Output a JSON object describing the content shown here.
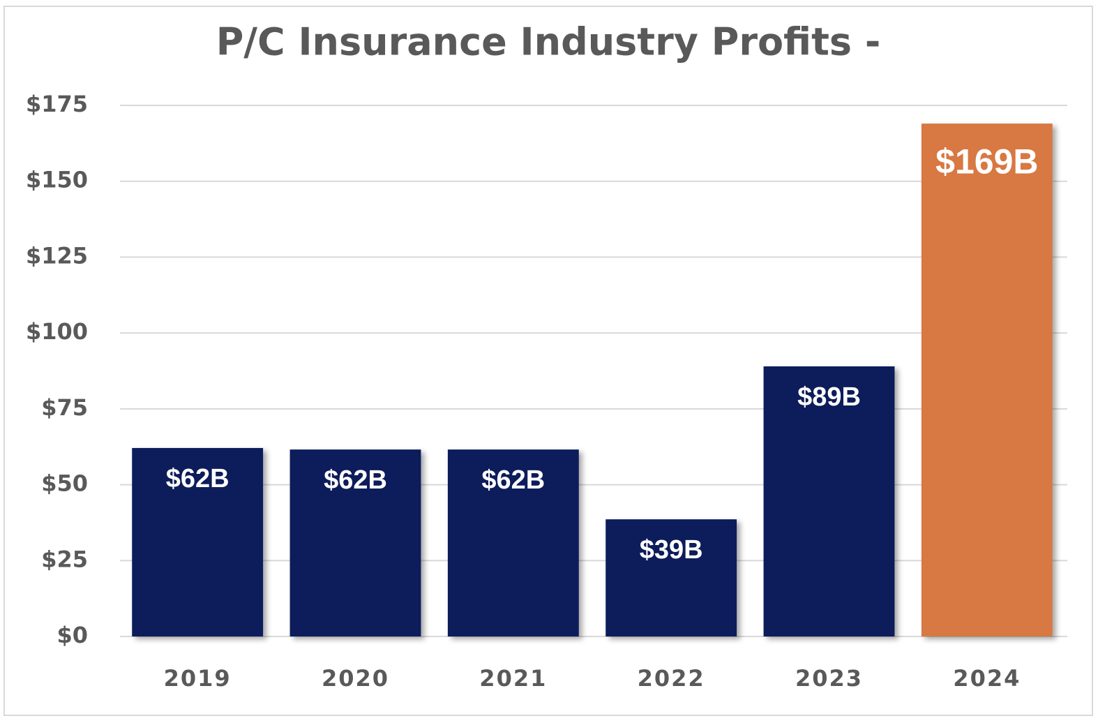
{
  "chart_data": {
    "type": "bar",
    "title": "P/C Insurance Industry Profits -",
    "categories": [
      "2019",
      "2020",
      "2021",
      "2022",
      "2023",
      "2024"
    ],
    "values": [
      62.1,
      61.6,
      61.6,
      38.6,
      89,
      169
    ],
    "value_labels": [
      "$62B",
      "$62B",
      "$62B",
      "$39B",
      "$89B",
      "$169B"
    ],
    "colors": [
      "#0a1f5a",
      "#0a1f5a",
      "#0a1f5a",
      "#0a1f5a",
      "#0a1f5a",
      "#d87843"
    ],
    "ylim": [
      0,
      175
    ],
    "yticks": [
      {
        "value": 0,
        "label": "$0"
      },
      {
        "value": 25,
        "label": "$25"
      },
      {
        "value": 50,
        "label": "$50"
      },
      {
        "value": 75,
        "label": "$75"
      },
      {
        "value": 100,
        "label": "$100"
      },
      {
        "value": 125,
        "label": "$125"
      },
      {
        "value": 150,
        "label": "$150"
      },
      {
        "value": 175,
        "label": "$175"
      }
    ],
    "grid": true
  }
}
